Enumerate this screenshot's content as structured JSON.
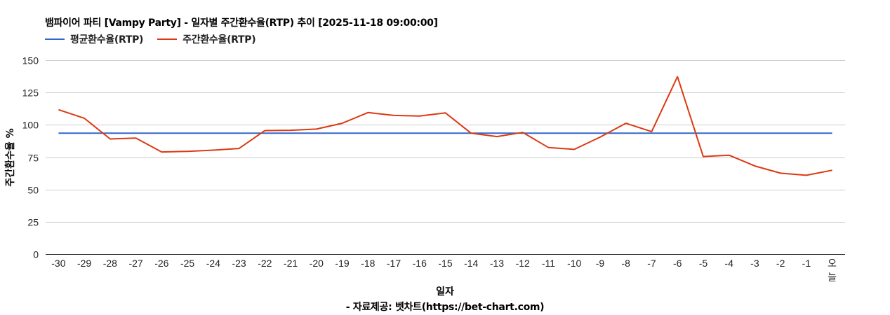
{
  "header": {
    "title": "뱀파이어 파티 [Vampy Party] - 일자별 주간환수율(RTP) 추이 [2025-11-18 09:00:00]"
  },
  "legend": [
    {
      "label": "평균환수율(RTP)",
      "color": "#3366cc"
    },
    {
      "label": "주간환수율(RTP)",
      "color": "#dc3912"
    }
  ],
  "footer": {
    "source": "- 자료제공: 벳차트(https://bet-chart.com)"
  },
  "chart_data": {
    "type": "line",
    "title": "뱀파이어 파티 [Vampy Party] - 일자별 주간환수율(RTP) 추이 [2025-11-18 09:00:00]",
    "xlabel": "일자",
    "ylabel": "주간환수율 %",
    "ylim": [
      0,
      150
    ],
    "yticks": [
      0,
      25,
      50,
      75,
      100,
      125,
      150
    ],
    "grid": true,
    "legend_position": "top",
    "categories": [
      "-30",
      "-29",
      "-28",
      "-27",
      "-26",
      "-25",
      "-24",
      "-23",
      "-22",
      "-21",
      "-20",
      "-19",
      "-18",
      "-17",
      "-16",
      "-15",
      "-14",
      "-13",
      "-12",
      "-11",
      "-10",
      "-9",
      "-8",
      "-7",
      "-6",
      "-5",
      "-4",
      "-3",
      "-2",
      "-1",
      "오늘"
    ],
    "series": [
      {
        "name": "평균환수율(RTP)",
        "color": "#3366cc",
        "values": [
          93.6,
          93.6,
          93.6,
          93.6,
          93.6,
          93.6,
          93.6,
          93.6,
          93.6,
          93.6,
          93.6,
          93.6,
          93.6,
          93.6,
          93.6,
          93.6,
          93.6,
          93.6,
          93.6,
          93.6,
          93.6,
          93.6,
          93.6,
          93.6,
          93.6,
          93.6,
          93.6,
          93.6,
          93.6,
          93.6,
          93.6
        ]
      },
      {
        "name": "주간환수율(RTP)",
        "color": "#dc3912",
        "values": [
          111.7,
          105.1,
          89.1,
          89.8,
          79.0,
          79.5,
          80.4,
          81.7,
          95.5,
          95.8,
          96.7,
          101.2,
          109.5,
          107.3,
          106.8,
          109.3,
          93.5,
          90.9,
          94.1,
          82.4,
          81.0,
          90.5,
          101.2,
          94.7,
          137.3,
          75.5,
          76.5,
          68.2,
          62.6,
          61.0,
          64.9
        ]
      }
    ]
  }
}
